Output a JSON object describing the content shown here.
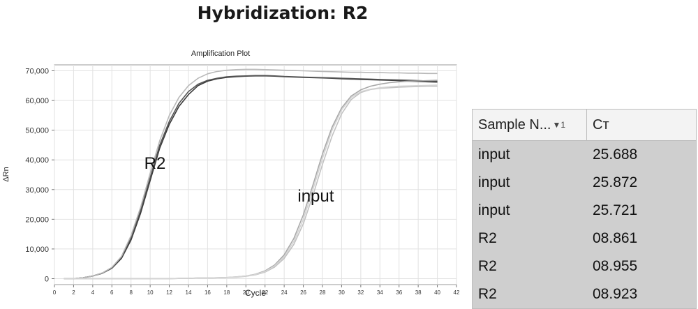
{
  "title": "Hybridization: R2",
  "chart_data": {
    "type": "line",
    "title": "Amplification Plot",
    "xlabel": "Cycle",
    "ylabel": "ΔRn",
    "xlim": [
      0,
      42
    ],
    "ylim": [
      -2000,
      72000
    ],
    "x_ticks": [
      0,
      2,
      4,
      6,
      8,
      10,
      12,
      14,
      16,
      18,
      20,
      22,
      24,
      26,
      28,
      30,
      32,
      34,
      36,
      38,
      40,
      42
    ],
    "x_tick_labels": [
      "0",
      "2",
      "4",
      "6",
      "8",
      "10",
      "12",
      "14",
      "16",
      "18",
      "20",
      "22",
      "24",
      "26",
      "28",
      "30",
      "32",
      "34",
      "36",
      "38",
      "40",
      "42"
    ],
    "y_ticks": [
      0,
      10000,
      20000,
      30000,
      40000,
      50000,
      60000,
      70000
    ],
    "y_tick_labels": [
      "0",
      "10,000",
      "20,000",
      "30,000",
      "40,000",
      "50,000",
      "60,000",
      "70,000"
    ],
    "grid": true,
    "annotations": [
      {
        "text": "R2",
        "x": 10.5,
        "y": 37000
      },
      {
        "text": "input",
        "x": 27.3,
        "y": 26000
      }
    ],
    "x": [
      1,
      2,
      3,
      4,
      5,
      6,
      7,
      8,
      9,
      10,
      11,
      12,
      13,
      14,
      15,
      16,
      17,
      18,
      19,
      20,
      21,
      22,
      23,
      24,
      25,
      26,
      27,
      28,
      29,
      30,
      31,
      32,
      33,
      34,
      35,
      36,
      37,
      38,
      39,
      40
    ],
    "series": [
      {
        "values": [
          0,
          0,
          300,
          900,
          1800,
          3500,
          6800,
          13000,
          22000,
          33000,
          44000,
          52000,
          58000,
          62000,
          65000,
          66500,
          67300,
          67800,
          68000,
          68200,
          68300,
          68300,
          68200,
          68000,
          67900,
          67800,
          67700,
          67600,
          67500,
          67300,
          67200,
          67100,
          67000,
          66900,
          66800,
          66700,
          66500,
          66400,
          66300,
          66200
        ],
        "color": "#3a3a3a"
      },
      {
        "values": [
          0,
          0,
          300,
          900,
          1900,
          3700,
          7200,
          13800,
          23000,
          34000,
          45000,
          53000,
          59000,
          63000,
          65500,
          66800,
          67500,
          68000,
          68200,
          68300,
          68400,
          68400,
          68300,
          68100,
          68000,
          67900,
          67800,
          67700,
          67600,
          67500,
          67400,
          67300,
          67200,
          67100,
          67000,
          66900,
          66800,
          66700,
          66600,
          66500
        ],
        "color": "#555555"
      },
      {
        "values": [
          0,
          0,
          300,
          900,
          1900,
          3800,
          7500,
          14500,
          24000,
          35500,
          46500,
          55000,
          61000,
          65000,
          67500,
          69000,
          69800,
          70200,
          70400,
          70500,
          70500,
          70400,
          70300,
          70200,
          70100,
          70000,
          69900,
          69800,
          69700,
          69600,
          69500,
          69500,
          69400,
          69400,
          69300,
          69300,
          69200,
          69200,
          69100,
          69100
        ],
        "color": "#b8b8b8"
      },
      {
        "values": [
          0,
          0,
          0,
          0,
          0,
          0,
          0,
          0,
          0,
          0,
          0,
          0,
          100,
          100,
          200,
          200,
          300,
          400,
          600,
          900,
          1500,
          2600,
          4600,
          8000,
          13500,
          21500,
          31500,
          42000,
          51000,
          57500,
          61500,
          63600,
          64800,
          65500,
          66000,
          66300,
          66500,
          66600,
          66700,
          66800
        ],
        "color": "#a8a8a8"
      },
      {
        "values": [
          0,
          0,
          0,
          0,
          0,
          0,
          0,
          0,
          0,
          0,
          0,
          0,
          100,
          100,
          200,
          200,
          300,
          400,
          500,
          800,
          1300,
          2200,
          3900,
          6800,
          11500,
          18500,
          28000,
          38500,
          48000,
          55500,
          60300,
          62700,
          63700,
          64100,
          64300,
          64500,
          64600,
          64700,
          64800,
          64800
        ],
        "color": "#c2c2c2"
      },
      {
        "values": [
          0,
          0,
          0,
          0,
          0,
          0,
          0,
          0,
          0,
          0,
          0,
          0,
          100,
          100,
          200,
          200,
          300,
          400,
          600,
          900,
          1400,
          2400,
          4300,
          7400,
          12500,
          20000,
          30000,
          40500,
          50000,
          56800,
          61000,
          63000,
          63800,
          64300,
          64600,
          64800,
          64900,
          65000,
          65100,
          65200
        ],
        "color": "#d4d4d4"
      }
    ]
  },
  "table": {
    "col1_header": "Sample N...",
    "sort_icon": "▼1",
    "col2_header": "Cт",
    "rows": [
      {
        "sample": "input",
        "ct": "25.688"
      },
      {
        "sample": "input",
        "ct": "25.872"
      },
      {
        "sample": "input",
        "ct": "25.721"
      },
      {
        "sample": "R2",
        "ct": "08.861"
      },
      {
        "sample": "R2",
        "ct": "08.955"
      },
      {
        "sample": "R2",
        "ct": "08.923"
      }
    ]
  }
}
